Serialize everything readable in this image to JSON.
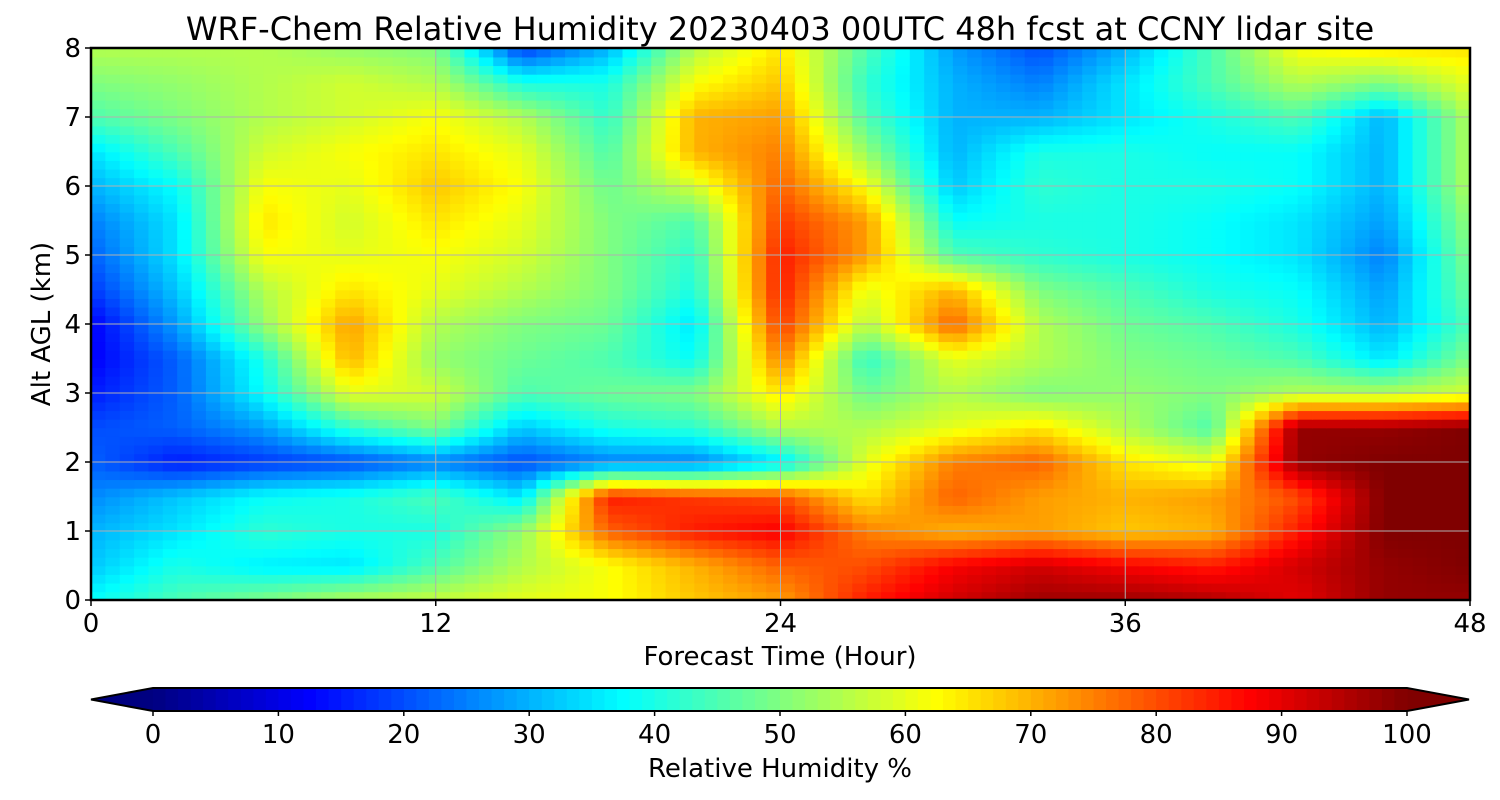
{
  "chart_data": {
    "type": "heatmap",
    "title": "WRF-Chem Relative Humidity 20230403 00UTC 48h fcst at CCNY lidar site",
    "xlabel": "Forecast Time (Hour)",
    "ylabel": "Alt AGL (km)",
    "xlim": [
      0,
      48
    ],
    "ylim": [
      0,
      8
    ],
    "x_ticks": [
      "0",
      "12",
      "24",
      "36",
      "48"
    ],
    "y_ticks": [
      "0",
      "1",
      "2",
      "3",
      "4",
      "5",
      "6",
      "7",
      "8"
    ],
    "grid": true,
    "colorbar": {
      "label": "Relative Humidity %",
      "colormap": "jet",
      "range": [
        0,
        100
      ],
      "extend": "both",
      "ticks": [
        "0",
        "10",
        "20",
        "30",
        "40",
        "50",
        "60",
        "70",
        "80",
        "90",
        "100"
      ]
    },
    "x": [
      0,
      3,
      6,
      9,
      12,
      15,
      18,
      21,
      24,
      27,
      30,
      33,
      36,
      39,
      42,
      45,
      48
    ],
    "y": [
      0,
      0.5,
      1,
      1.5,
      2,
      2.5,
      3,
      3.5,
      4,
      4.5,
      5,
      5.5,
      6,
      6.5,
      7,
      7.5,
      8
    ],
    "z": [
      [
        38,
        45,
        50,
        55,
        57,
        60,
        62,
        68,
        72,
        85,
        92,
        97,
        97,
        95,
        90,
        98,
        98
      ],
      [
        32,
        40,
        36,
        35,
        45,
        55,
        62,
        70,
        78,
        80,
        88,
        92,
        88,
        85,
        92,
        98,
        100
      ],
      [
        30,
        35,
        42,
        40,
        40,
        52,
        78,
        85,
        88,
        75,
        70,
        72,
        68,
        70,
        85,
        100,
        100
      ],
      [
        26,
        32,
        38,
        40,
        45,
        35,
        85,
        82,
        80,
        65,
        78,
        72,
        70,
        72,
        80,
        100,
        100
      ],
      [
        22,
        15,
        18,
        20,
        25,
        20,
        25,
        25,
        35,
        60,
        75,
        78,
        65,
        60,
        98,
        100,
        100
      ],
      [
        20,
        22,
        28,
        42,
        50,
        32,
        40,
        42,
        55,
        55,
        60,
        65,
        55,
        45,
        98,
        98,
        100
      ],
      [
        15,
        22,
        38,
        60,
        58,
        45,
        48,
        50,
        65,
        48,
        55,
        50,
        52,
        50,
        55,
        55,
        58
      ],
      [
        12,
        22,
        40,
        70,
        52,
        48,
        45,
        38,
        75,
        42,
        60,
        55,
        50,
        48,
        45,
        35,
        50
      ],
      [
        12,
        28,
        52,
        72,
        55,
        50,
        48,
        35,
        82,
        55,
        78,
        55,
        48,
        45,
        40,
        30,
        45
      ],
      [
        18,
        32,
        55,
        65,
        60,
        55,
        50,
        40,
        85,
        60,
        70,
        50,
        45,
        40,
        38,
        28,
        48
      ],
      [
        22,
        35,
        62,
        60,
        62,
        58,
        50,
        42,
        85,
        72,
        45,
        42,
        40,
        38,
        35,
        25,
        50
      ],
      [
        25,
        35,
        65,
        58,
        65,
        60,
        50,
        45,
        82,
        72,
        38,
        40,
        40,
        38,
        35,
        28,
        52
      ],
      [
        30,
        38,
        62,
        60,
        68,
        62,
        48,
        58,
        78,
        62,
        32,
        42,
        40,
        40,
        38,
        30,
        55
      ],
      [
        35,
        45,
        58,
        62,
        65,
        60,
        45,
        70,
        75,
        52,
        30,
        40,
        40,
        38,
        38,
        30,
        55
      ],
      [
        45,
        50,
        55,
        58,
        62,
        55,
        42,
        70,
        72,
        45,
        30,
        30,
        35,
        40,
        45,
        30,
        55
      ],
      [
        50,
        52,
        55,
        58,
        55,
        40,
        40,
        62,
        68,
        42,
        30,
        25,
        35,
        45,
        55,
        50,
        60
      ],
      [
        55,
        55,
        55,
        52,
        50,
        18,
        30,
        55,
        65,
        45,
        28,
        20,
        30,
        45,
        62,
        65,
        65
      ]
    ]
  }
}
